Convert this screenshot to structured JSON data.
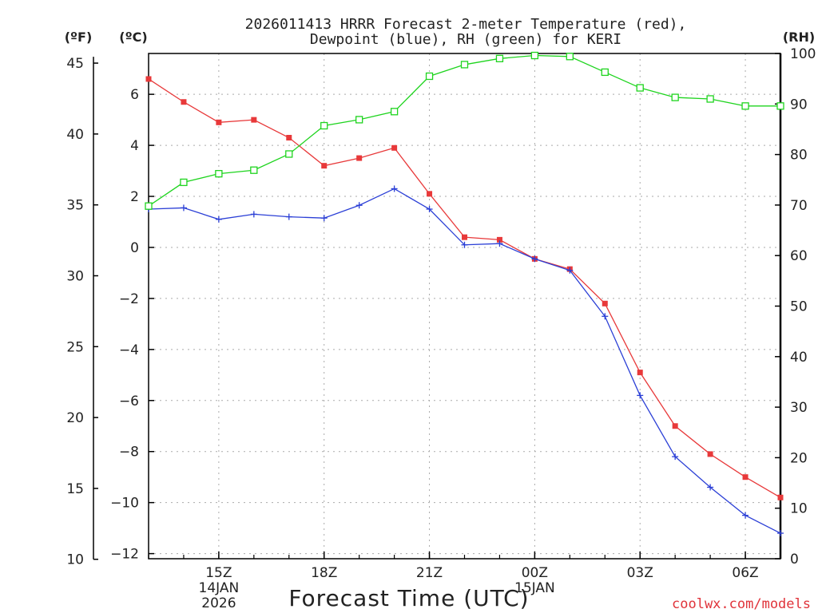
{
  "chart_data": {
    "type": "line",
    "title_line1": "2026011413 HRRR Forecast 2-meter Temperature (red),",
    "title_line2": "Dewpoint (blue), RH (green) for KERI",
    "xlabel": "Forecast Time (UTC)",
    "left_unit_f": "(ºF)",
    "left_unit_c": "(ºC)",
    "right_unit": "(RH)",
    "credit": "coolwx.com/models",
    "x_hours": [
      13,
      14,
      15,
      16,
      17,
      18,
      19,
      20,
      21,
      22,
      23,
      24,
      25,
      26,
      27,
      28,
      29,
      30,
      31
    ],
    "x_range": [
      13,
      31
    ],
    "x_ticks": [
      {
        "hour": 15,
        "label": "15Z",
        "sub1": "14JAN",
        "sub2": "2026"
      },
      {
        "hour": 18,
        "label": "18Z",
        "sub1": "",
        "sub2": ""
      },
      {
        "hour": 21,
        "label": "21Z",
        "sub1": "",
        "sub2": ""
      },
      {
        "hour": 24,
        "label": "00Z",
        "sub1": "15JAN",
        "sub2": ""
      },
      {
        "hour": 27,
        "label": "03Z",
        "sub1": "",
        "sub2": ""
      },
      {
        "hour": 30,
        "label": "06Z",
        "sub1": "",
        "sub2": ""
      }
    ],
    "celsius_axis": {
      "range": [
        -12.2,
        7.6
      ],
      "ticks": [
        6,
        4,
        2,
        0,
        -2,
        -4,
        -6,
        -8,
        -10,
        -12
      ],
      "tick_labels": [
        "6",
        "4",
        "2",
        "0",
        "−2",
        "−4",
        "−6",
        "−8",
        "−10",
        "−12"
      ]
    },
    "fahrenheit_axis": {
      "ticks": [
        45,
        40,
        35,
        30,
        25,
        20,
        15,
        10
      ]
    },
    "rh_axis": {
      "range": [
        0,
        100
      ],
      "ticks": [
        0,
        10,
        20,
        30,
        40,
        50,
        60,
        70,
        80,
        90,
        100
      ]
    },
    "series": [
      {
        "name": "Temperature",
        "unit": "C",
        "color": "#e8393a",
        "values": [
          6.6,
          5.7,
          4.9,
          5.0,
          4.3,
          3.2,
          3.5,
          3.9,
          2.1,
          0.4,
          0.3,
          -0.45,
          -0.85,
          -2.2,
          -4.9,
          -7.0,
          -8.1,
          -9.0,
          -9.8
        ]
      },
      {
        "name": "Dewpoint",
        "unit": "C",
        "color": "#2b3fd6",
        "values": [
          1.5,
          1.55,
          1.1,
          1.3,
          1.2,
          1.15,
          1.65,
          2.3,
          1.5,
          0.1,
          0.15,
          -0.45,
          -0.9,
          -2.7,
          -5.8,
          -8.2,
          -9.4,
          -10.5,
          -11.2
        ]
      },
      {
        "name": "RH",
        "unit": "%",
        "color": "#1ed41e",
        "values": [
          69.8,
          74.5,
          76.2,
          76.9,
          80.1,
          85.7,
          86.9,
          88.5,
          95.5,
          97.8,
          99.0,
          99.6,
          99.4,
          96.3,
          93.2,
          91.3,
          91.0,
          89.6,
          89.6
        ]
      }
    ]
  }
}
